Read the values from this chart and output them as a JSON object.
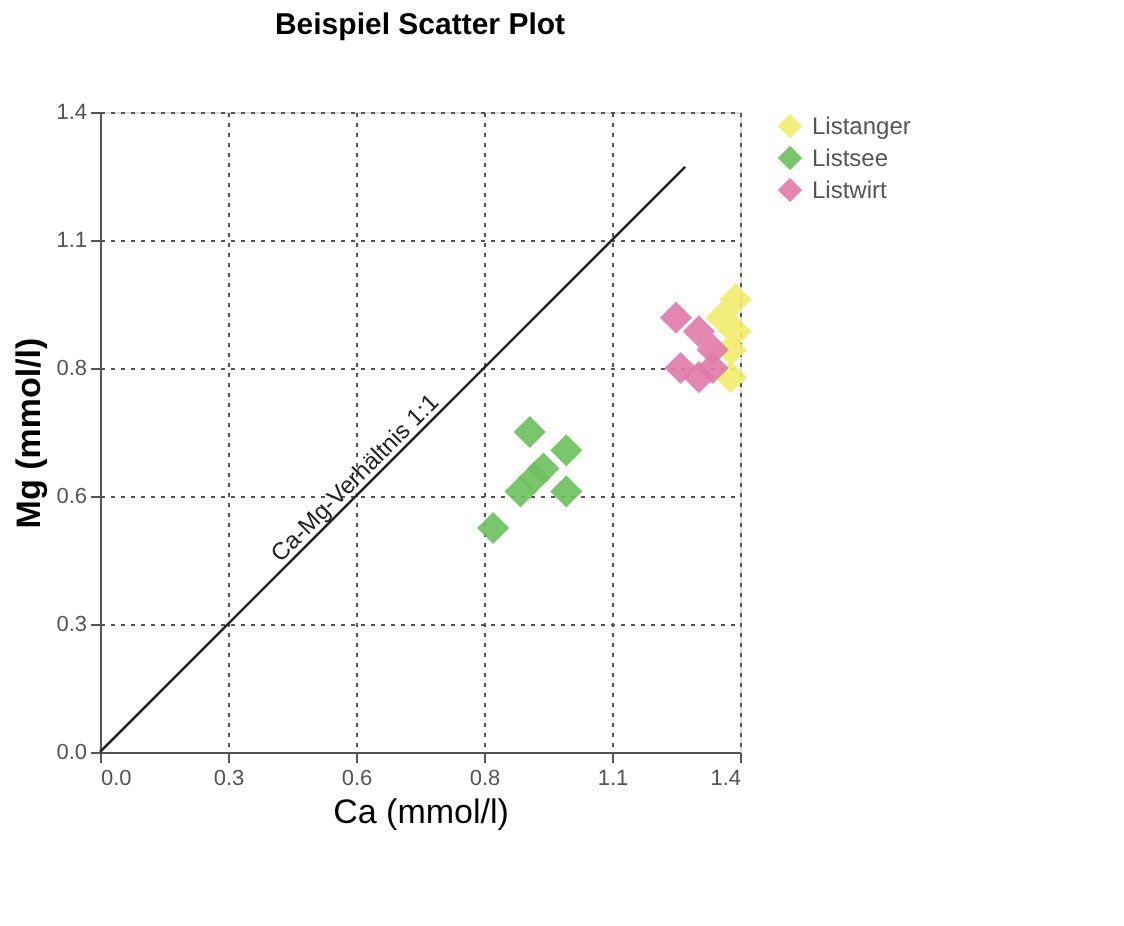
{
  "chart_data": {
    "type": "scatter",
    "title": "Beispiel Scatter Plot",
    "xlabel": "Ca (mmol/l)",
    "ylabel": "Mg (mmol/l)",
    "xlim": [
      0,
      1.4
    ],
    "ylim": [
      0,
      1.4
    ],
    "xticks": [
      {
        "value": 0,
        "label": "0.0"
      },
      {
        "value": 0.28,
        "label": "0.3"
      },
      {
        "value": 0.56,
        "label": "0.6"
      },
      {
        "value": 0.84,
        "label": "0.8"
      },
      {
        "value": 1.12,
        "label": "1.1"
      },
      1.4
    ],
    "yticks": [
      {
        "value": 0,
        "label": "0.0"
      },
      {
        "value": 0.28,
        "label": "0.3"
      },
      {
        "value": 0.56,
        "label": "0.6"
      },
      {
        "value": 0.84,
        "label": "0.8"
      },
      {
        "value": 1.12,
        "label": "1.1"
      },
      1.4
    ],
    "grid": true,
    "marker": "diamond",
    "legend": "top right",
    "series": [
      {
        "type": "line",
        "marker": "none",
        "color": "#222222",
        "x": [
          0,
          1.28
        ],
        "values": [
          0,
          1.28
        ]
      },
      {
        "name": "Listanger",
        "color": "#f0ec6e",
        "x": [
          1.39,
          1.36,
          1.39,
          1.38,
          1.38
        ],
        "values": [
          0.99,
          0.95,
          0.92,
          0.88,
          0.82
        ]
      },
      {
        "name": "Listsee",
        "color": "#6cc05c",
        "x": [
          0.94,
          0.86,
          0.92,
          0.97,
          1.02,
          1.02,
          0.95
        ],
        "values": [
          0.7,
          0.49,
          0.57,
          0.62,
          0.66,
          0.57,
          0.6
        ]
      },
      {
        "name": "Listwirt",
        "color": "#e07aaa",
        "x": [
          1.26,
          1.27,
          1.31,
          1.31,
          1.34,
          1.34
        ],
        "values": [
          0.95,
          0.84,
          0.82,
          0.92,
          0.88,
          0.84
        ]
      }
    ],
    "annotations": [
      {
        "text": "Ca-Mg-Verhältnis 1:1",
        "x": 0.6,
        "y": 0.6
      }
    ]
  }
}
